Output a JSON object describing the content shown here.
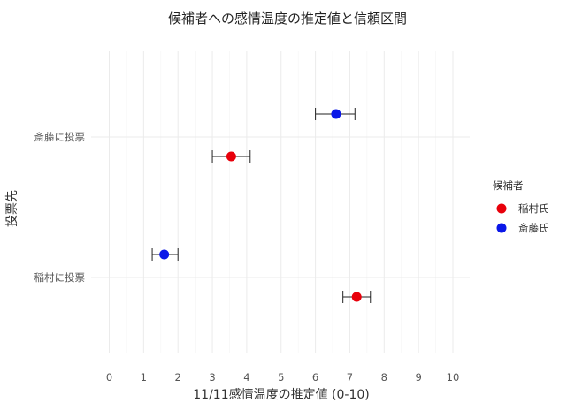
{
  "chart_data": {
    "type": "scatter",
    "title": "候補者への感情温度の推定値と信頼区間",
    "xlabel": "11/11感情温度の推定値 (0-10)",
    "ylabel": "投票先",
    "xlim": [
      -0.5,
      10.5
    ],
    "xticks": [
      0,
      1,
      2,
      3,
      4,
      5,
      6,
      7,
      8,
      9,
      10
    ],
    "categories": [
      "斎藤に投票",
      "稲村に投票"
    ],
    "legend": {
      "title": "候補者",
      "position": "right"
    },
    "grid": true,
    "series": [
      {
        "name": "稲村氏",
        "color": "#e8000b",
        "points": [
          {
            "category": "斎藤に投票",
            "estimate": 3.55,
            "lower": 3.0,
            "upper": 4.1
          },
          {
            "category": "稲村に投票",
            "estimate": 7.2,
            "lower": 6.8,
            "upper": 7.6
          }
        ]
      },
      {
        "name": "斎藤氏",
        "color": "#0a17e8",
        "points": [
          {
            "category": "斎藤に投票",
            "estimate": 6.6,
            "lower": 6.0,
            "upper": 7.15
          },
          {
            "category": "稲村に投票",
            "estimate": 1.6,
            "lower": 1.25,
            "upper": 2.0
          }
        ]
      }
    ]
  }
}
